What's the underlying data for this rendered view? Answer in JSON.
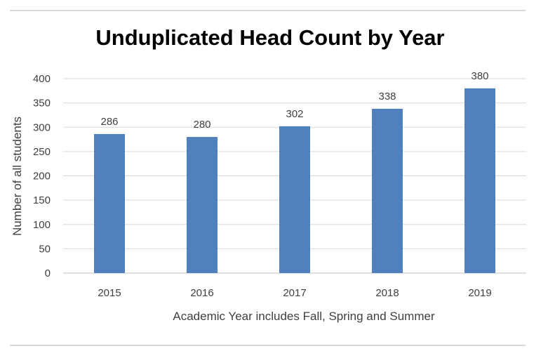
{
  "chart_data": {
    "type": "bar",
    "title": "Unduplicated Head Count by Year",
    "xlabel": "Academic Year includes Fall, Spring and Summer",
    "ylabel": "Number of all students",
    "categories": [
      "2015",
      "2016",
      "2017",
      "2018",
      "2019"
    ],
    "values": [
      286,
      280,
      302,
      338,
      380
    ],
    "ylim": [
      0,
      400
    ],
    "yticks": [
      "0",
      "50",
      "100",
      "150",
      "200",
      "250",
      "300",
      "350",
      "400"
    ],
    "data_labels": [
      "286",
      "280",
      "302",
      "338",
      "380"
    ],
    "grid": true,
    "legend": "none",
    "bar_color": "#4f81bd",
    "grid_color": "#d9d9d9"
  }
}
